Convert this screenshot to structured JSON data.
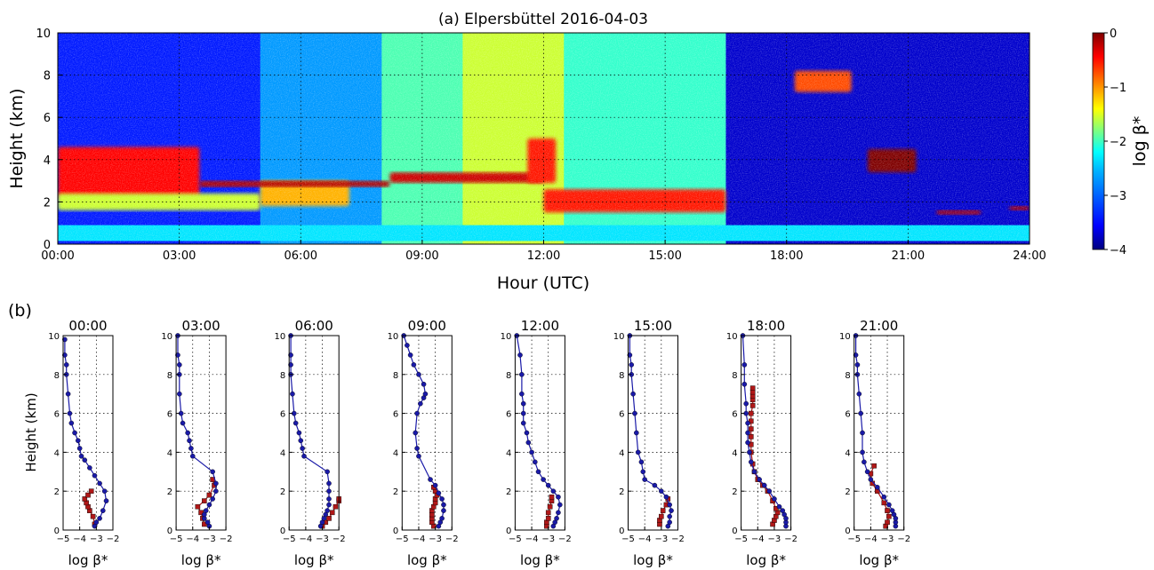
{
  "chart_data": [
    {
      "type": "heatmap",
      "panel_label": "",
      "title": "(a) Elpersbüttel 2016-04-03",
      "xlabel": "Hour (UTC)",
      "ylabel": "Height (km)",
      "xlim": [
        0,
        24
      ],
      "ylim": [
        0,
        10
      ],
      "x_tick_labels": [
        "00:00",
        "03:00",
        "06:00",
        "09:00",
        "12:00",
        "15:00",
        "18:00",
        "21:00",
        "24:00"
      ],
      "y_ticks": [
        0,
        2,
        4,
        6,
        8,
        10
      ],
      "grid": true,
      "colorbar": {
        "label": "log β*",
        "range": [
          -4,
          0
        ],
        "ticks": [
          0,
          -1,
          -2,
          -3,
          -4
        ],
        "tick_labels": [
          "0",
          "−1",
          "−2",
          "−3",
          "−4"
        ],
        "colors": [
          "#00007f",
          "#0000ff",
          "#007fff",
          "#00ffff",
          "#7fff7f",
          "#ffff00",
          "#ff7f00",
          "#ff0000",
          "#7f0000"
        ]
      },
      "background_by_hour": [
        {
          "x": [
            0,
            5
          ],
          "value": -3.4
        },
        {
          "x": [
            5,
            8
          ],
          "value": -2.9
        },
        {
          "x": [
            8,
            10
          ],
          "value": -2.2
        },
        {
          "x": [
            10,
            12.5
          ],
          "value": -1.7
        },
        {
          "x": [
            12.5,
            16.5
          ],
          "value": -2.3
        },
        {
          "x": [
            16.5,
            24
          ],
          "value": -3.7
        }
      ],
      "boundary_layer": [
        {
          "x": [
            0,
            24
          ],
          "y": [
            0.15,
            0.9
          ],
          "value": -2.6
        }
      ],
      "features": [
        {
          "x": [
            0,
            3.5
          ],
          "y": [
            2.2,
            4.6
          ],
          "value": -0.5
        },
        {
          "x": [
            0,
            5
          ],
          "y": [
            1.6,
            2.4
          ],
          "value": -1.7
        },
        {
          "x": [
            5,
            7.2
          ],
          "y": [
            1.8,
            3.0
          ],
          "value": -1.2
        },
        {
          "x": [
            3.5,
            8.2
          ],
          "y": [
            2.7,
            3.0
          ],
          "value": -0.2
        },
        {
          "x": [
            8.2,
            12.0
          ],
          "y": [
            2.9,
            3.4
          ],
          "value": -0.3
        },
        {
          "x": [
            11.6,
            12.3
          ],
          "y": [
            2.9,
            5.0
          ],
          "value": -0.6
        },
        {
          "x": [
            12.0,
            16.5
          ],
          "y": [
            1.5,
            2.6
          ],
          "value": -0.6
        },
        {
          "x": [
            20.0,
            21.2
          ],
          "y": [
            3.4,
            4.5
          ],
          "value": 0.0
        },
        {
          "x": [
            18.2,
            19.6
          ],
          "y": [
            7.2,
            8.2
          ],
          "value": -0.8
        },
        {
          "x": [
            21.7,
            22.8
          ],
          "y": [
            1.4,
            1.6
          ],
          "value": -0.2
        },
        {
          "x": [
            23.5,
            24.0
          ],
          "y": [
            1.6,
            1.8
          ],
          "value": -0.2
        }
      ]
    },
    {
      "type": "line",
      "panel_label": "(b)",
      "xlabel": "log β*",
      "ylabel": "Height (km)",
      "xlim": [
        -5,
        -2
      ],
      "ylim": [
        0,
        10
      ],
      "x_ticks": [
        -5,
        -4,
        -3,
        -2
      ],
      "x_tick_labels": [
        "−5",
        "−4",
        "−3",
        "−2"
      ],
      "y_ticks": [
        0,
        2,
        4,
        6,
        8,
        10
      ],
      "grid": true,
      "series_colors": {
        "blue": "#1a1aa8",
        "red": "#b01818"
      },
      "profiles": [
        {
          "title": "00:00",
          "blue": {
            "x": [
              -3.1,
              -3.0,
              -2.8,
              -2.6,
              -2.4,
              -2.5,
              -2.8,
              -3.1,
              -3.4,
              -3.7,
              -3.9,
              -4.0,
              -4.1,
              -4.3,
              -4.5,
              -4.6,
              -4.7,
              -4.8,
              -4.8,
              -4.9,
              -4.9
            ],
            "y": [
              0.2,
              0.4,
              0.6,
              1.0,
              1.5,
              2.0,
              2.4,
              2.8,
              3.2,
              3.6,
              3.8,
              4.2,
              4.6,
              5.0,
              5.5,
              6.0,
              7.0,
              8.0,
              8.5,
              9.0,
              9.8
            ]
          },
          "red": {
            "x": [
              -3.1,
              -3.2,
              -3.4,
              -3.5,
              -3.6,
              -3.7,
              -3.5,
              -3.3
            ],
            "y": [
              0.3,
              0.7,
              1.0,
              1.2,
              1.4,
              1.6,
              1.8,
              2.0
            ]
          }
        },
        {
          "title": "03:00",
          "blue": {
            "x": [
              -3.0,
              -3.1,
              -3.3,
              -3.3,
              -3.2,
              -3.0,
              -2.8,
              -2.6,
              -2.6,
              -2.8,
              -4.0,
              -4.1,
              -4.2,
              -4.3,
              -4.6,
              -4.7,
              -4.8,
              -4.8,
              -4.8,
              -4.9,
              -4.9
            ],
            "y": [
              0.2,
              0.4,
              0.6,
              0.8,
              1.0,
              1.3,
              1.6,
              2.0,
              2.4,
              3.0,
              3.8,
              4.2,
              4.6,
              5.0,
              5.5,
              6.0,
              7.0,
              8.0,
              8.5,
              9.0,
              10.0
            ]
          },
          "red": {
            "x": [
              -3.3,
              -3.4,
              -3.5,
              -3.7,
              -3.3,
              -3.0,
              -2.7,
              -2.8
            ],
            "y": [
              0.3,
              0.6,
              0.9,
              1.2,
              1.5,
              1.8,
              2.3,
              2.6
            ]
          }
        },
        {
          "title": "06:00",
          "blue": {
            "x": [
              -3.1,
              -3.0,
              -2.9,
              -2.8,
              -2.7,
              -2.6,
              -2.6,
              -2.6,
              -2.6,
              -2.7,
              -4.1,
              -4.2,
              -4.3,
              -4.4,
              -4.6,
              -4.7,
              -4.8,
              -4.9,
              -4.9,
              -4.9,
              -4.9
            ],
            "y": [
              0.2,
              0.4,
              0.6,
              0.8,
              1.0,
              1.3,
              1.6,
              2.0,
              2.4,
              3.0,
              3.8,
              4.2,
              4.6,
              5.0,
              5.5,
              6.0,
              7.0,
              8.0,
              8.5,
              9.0,
              10.0
            ]
          },
          "red": {
            "x": [
              -3.0,
              -2.8,
              -2.6,
              -2.4,
              -2.2,
              -2.0,
              -2.0
            ],
            "y": [
              0.2,
              0.4,
              0.6,
              0.9,
              1.2,
              1.5,
              1.6
            ]
          }
        },
        {
          "title": "09:00",
          "blue": {
            "x": [
              -2.8,
              -2.7,
              -2.6,
              -2.5,
              -2.5,
              -2.6,
              -2.8,
              -3.0,
              -3.3,
              -4.0,
              -4.1,
              -4.2,
              -4.1,
              -3.9,
              -3.7,
              -3.6,
              -3.7,
              -4.0,
              -4.3,
              -4.5,
              -4.7,
              -4.9
            ],
            "y": [
              0.2,
              0.4,
              0.6,
              1.0,
              1.3,
              1.6,
              1.9,
              2.3,
              2.6,
              3.8,
              4.2,
              5.0,
              6.0,
              6.5,
              6.8,
              7.0,
              7.5,
              8.0,
              8.5,
              9.0,
              9.5,
              10.0
            ]
          },
          "red": {
            "x": [
              -3.1,
              -3.2,
              -3.2,
              -3.2,
              -3.2,
              -3.1,
              -3.0,
              -3.0,
              -2.9,
              -3.0,
              -3.1
            ],
            "y": [
              0.2,
              0.4,
              0.6,
              0.8,
              1.0,
              1.2,
              1.4,
              1.6,
              1.8,
              2.0,
              2.2
            ]
          }
        },
        {
          "title": "12:00",
          "blue": {
            "x": [
              -2.7,
              -2.6,
              -2.5,
              -2.4,
              -2.3,
              -2.4,
              -2.7,
              -3.0,
              -3.3,
              -3.6,
              -3.8,
              -4.0,
              -4.2,
              -4.3,
              -4.5,
              -4.5,
              -4.5,
              -4.6,
              -4.6,
              -4.7,
              -4.9
            ],
            "y": [
              0.2,
              0.4,
              0.6,
              0.9,
              1.3,
              1.7,
              2.0,
              2.3,
              2.6,
              3.0,
              3.5,
              4.0,
              4.5,
              5.0,
              5.5,
              6.0,
              6.5,
              7.0,
              8.0,
              9.0,
              10.0
            ]
          },
          "red": {
            "x": [
              -3.1,
              -3.1,
              -3.0,
              -3.0,
              -2.9,
              -2.8,
              -2.8
            ],
            "y": [
              0.2,
              0.4,
              0.6,
              0.9,
              1.2,
              1.5,
              1.7
            ]
          }
        },
        {
          "title": "15:00",
          "blue": {
            "x": [
              -2.6,
              -2.5,
              -2.5,
              -2.4,
              -2.5,
              -2.7,
              -3.0,
              -3.4,
              -4.0,
              -4.1,
              -4.2,
              -4.4,
              -4.5,
              -4.6,
              -4.7,
              -4.8,
              -4.8,
              -4.9,
              -4.9
            ],
            "y": [
              0.2,
              0.4,
              0.7,
              1.0,
              1.3,
              1.7,
              2.0,
              2.3,
              2.6,
              3.0,
              3.5,
              4.0,
              5.0,
              6.0,
              7.0,
              8.0,
              8.5,
              9.0,
              10.0
            ]
          },
          "red": {
            "x": [
              -3.1,
              -3.1,
              -3.0,
              -2.9,
              -2.7,
              -2.6
            ],
            "y": [
              0.3,
              0.5,
              0.7,
              1.0,
              1.3,
              1.6
            ]
          }
        },
        {
          "title": "18:00",
          "blue": {
            "x": [
              -2.3,
              -2.3,
              -2.3,
              -2.4,
              -2.5,
              -2.7,
              -3.0,
              -3.3,
              -3.6,
              -3.9,
              -4.2,
              -4.4,
              -4.5,
              -4.6,
              -4.6,
              -4.6,
              -4.7,
              -4.7,
              -4.8,
              -4.8,
              -4.9
            ],
            "y": [
              0.2,
              0.4,
              0.6,
              0.8,
              1.0,
              1.2,
              1.6,
              2.0,
              2.3,
              2.6,
              3.0,
              3.5,
              4.0,
              4.5,
              5.0,
              5.5,
              6.0,
              6.5,
              7.5,
              8.5,
              10.0
            ]
          },
          "red": {
            "x": [
              -3.1,
              -3.0,
              -2.9,
              -2.8,
              -2.9,
              -3.1,
              -3.4,
              -3.7,
              -4.0,
              -4.2,
              -4.3,
              -4.4,
              -4.4,
              -4.4,
              -4.4,
              -4.4,
              -4.4,
              -4.3,
              -4.3,
              -4.3,
              -4.3,
              -4.3
            ],
            "y": [
              0.3,
              0.5,
              0.7,
              0.9,
              1.1,
              1.5,
              2.0,
              2.3,
              2.6,
              3.0,
              3.4,
              4.0,
              4.4,
              4.8,
              5.2,
              5.6,
              6.0,
              6.4,
              6.7,
              6.9,
              7.1,
              7.3
            ]
          }
        },
        {
          "title": "21:00",
          "blue": {
            "x": [
              -2.5,
              -2.5,
              -2.5,
              -2.6,
              -2.7,
              -2.9,
              -3.2,
              -3.6,
              -4.0,
              -4.2,
              -4.4,
              -4.5,
              -4.5,
              -4.6,
              -4.7,
              -4.8,
              -4.8,
              -4.9,
              -4.9
            ],
            "y": [
              0.2,
              0.4,
              0.6,
              0.8,
              1.0,
              1.3,
              1.7,
              2.2,
              2.6,
              3.0,
              3.5,
              4.0,
              5.0,
              6.0,
              7.0,
              8.0,
              8.5,
              9.0,
              10.0
            ]
          },
          "red": {
            "x": [
              -3.1,
              -3.0,
              -2.9,
              -3.0,
              -3.2,
              -3.6,
              -3.9,
              -4.0,
              -3.8
            ],
            "y": [
              0.2,
              0.4,
              0.7,
              1.0,
              1.4,
              2.0,
              2.4,
              2.9,
              3.3
            ]
          }
        }
      ]
    }
  ]
}
